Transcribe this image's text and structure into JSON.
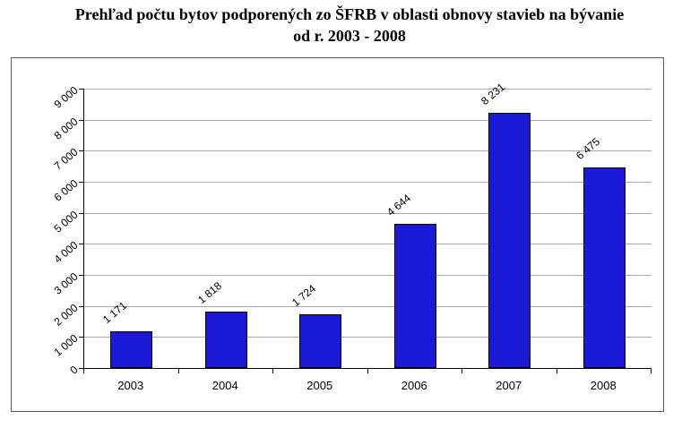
{
  "title": {
    "line1": "Prehľad počtu bytov podporených zo ŠFRB v oblasti obnovy stavieb na bývanie",
    "line2": "od r. 2003 - 2008"
  },
  "chart_data": {
    "type": "bar",
    "title": "Prehľad počtu bytov podporených zo ŠFRB v oblasti obnovy stavieb na bývanie od r. 2003 - 2008",
    "categories": [
      "2003",
      "2004",
      "2005",
      "2006",
      "2007",
      "2008"
    ],
    "values": [
      1171,
      1818,
      1724,
      4644,
      8231,
      6475
    ],
    "value_labels": [
      "1 171",
      "1 818",
      "1 724",
      "4 644",
      "8 231",
      "6 475"
    ],
    "xlabel": "",
    "ylabel": "",
    "ylim": [
      0,
      9000
    ],
    "ytick_interval": 1000,
    "ytick_labels": [
      "0",
      "1 000",
      "2 000",
      "3 000",
      "4 000",
      "5 000",
      "6 000",
      "7 000",
      "8 000",
      "9 000"
    ],
    "grid": true,
    "legend_position": "none",
    "colors": {
      "bar_fill": "#1a1ad6",
      "bar_border": "#000000",
      "gridline": "#a8a8a8",
      "axis": "#000000",
      "chart_border": "#5a5a5a",
      "background": "#ffffff"
    }
  }
}
